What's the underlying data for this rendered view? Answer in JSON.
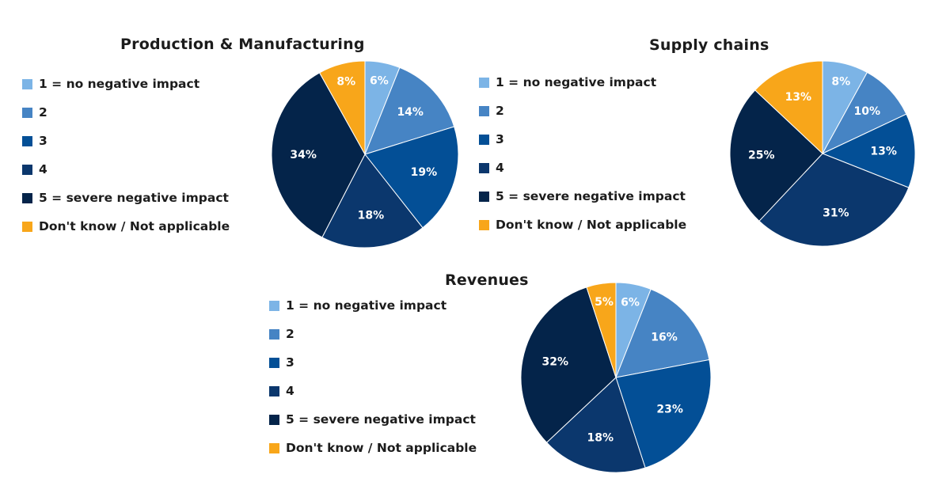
{
  "chart_data": [
    {
      "type": "pie",
      "title": "Production & Manufacturing",
      "categories": [
        "1 = no negative impact",
        "2",
        "3",
        "4",
        "5 = severe negative impact",
        "Don't know / Not applicable"
      ],
      "values": [
        6,
        14,
        19,
        18,
        34,
        8
      ],
      "labels": [
        "6%",
        "14%",
        "19%",
        "18%",
        "34%",
        "8%"
      ],
      "colors": [
        "#7cb4e6",
        "#4684c4",
        "#034f96",
        "#0b376d",
        "#04244a",
        "#f8a61a"
      ],
      "legend_placement": "left"
    },
    {
      "type": "pie",
      "title": "Supply chains",
      "categories": [
        "1 = no negative impact",
        "2",
        "3",
        "4",
        "5 = severe negative impact",
        "Don't know / Not applicable"
      ],
      "values": [
        8,
        10,
        13,
        31,
        25,
        13
      ],
      "labels": [
        "8%",
        "10%",
        "13%",
        "31%",
        "25%",
        "13%"
      ],
      "colors": [
        "#7cb4e6",
        "#4684c4",
        "#034f96",
        "#0b376d",
        "#04244a",
        "#f8a61a"
      ],
      "legend_placement": "left"
    },
    {
      "type": "pie",
      "title": "Revenues",
      "categories": [
        "1 = no negative impact",
        "2",
        "3",
        "4",
        "5 = severe negative impact",
        "Don't know / Not applicable"
      ],
      "values": [
        6,
        16,
        23,
        18,
        32,
        5
      ],
      "labels": [
        "6%",
        "16%",
        "23%",
        "18%",
        "32%",
        "5%"
      ],
      "colors": [
        "#7cb4e6",
        "#4684c4",
        "#034f96",
        "#0b376d",
        "#04244a",
        "#f8a61a"
      ],
      "legend_placement": "left"
    }
  ]
}
